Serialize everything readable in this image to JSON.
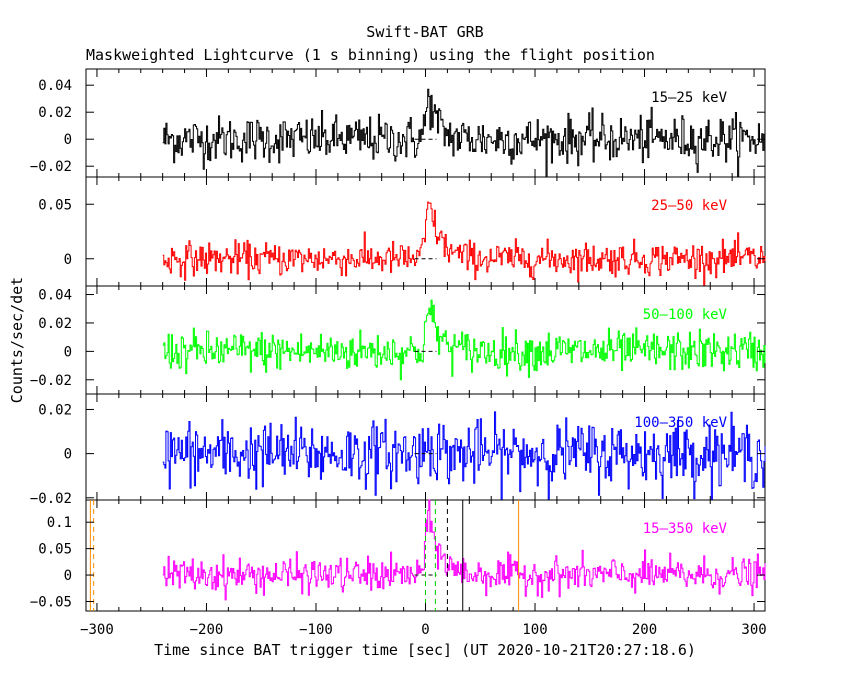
{
  "chart_data": {
    "type": "line",
    "title": "Swift-BAT GRB",
    "subtitle": "Maskweighted Lightcurve (1 s binning) using the flight position",
    "xlabel": "Time since BAT trigger time [sec] (UT 2020-10-21T20:27:18.6)",
    "ylabel": "Counts/sec/det",
    "xlim": [
      -310,
      310
    ],
    "x_tick_labels": [
      "−300",
      "−200",
      "−100",
      "0",
      "100",
      "200",
      "300"
    ],
    "x_ticks": [
      -300,
      -200,
      -100,
      0,
      100,
      200,
      300
    ],
    "data_start": -240,
    "data_end": 310,
    "panels": [
      {
        "band": "15–25 keV",
        "color": "#000000",
        "ylim": [
          -0.028,
          0.052
        ],
        "y_ticks": [
          -0.02,
          0,
          0.02,
          0.04
        ],
        "y_tick_labels": [
          "−0.02",
          "0",
          "0.02",
          "0.04"
        ],
        "noise_sigma": 0.0085,
        "peak_amplitude": 0.03,
        "peak_time": 3,
        "rise": 3,
        "decay": 8
      },
      {
        "band": "25–50 keV",
        "color": "#ff0000",
        "ylim": [
          -0.025,
          0.075
        ],
        "y_ticks": [
          0,
          0.05
        ],
        "y_tick_labels": [
          "0",
          "0.05"
        ],
        "noise_sigma": 0.0075,
        "peak_amplitude": 0.05,
        "peak_time": 3,
        "rise": 3,
        "decay": 10
      },
      {
        "band": "50–100 keV",
        "color": "#00ff00",
        "ylim": [
          -0.03,
          0.046
        ],
        "y_ticks": [
          -0.02,
          0,
          0.02,
          0.04
        ],
        "y_tick_labels": [
          "−0.02",
          "0",
          "0.02",
          "0.04"
        ],
        "noise_sigma": 0.007,
        "peak_amplitude": 0.03,
        "peak_time": 3,
        "rise": 3,
        "decay": 9
      },
      {
        "band": "100–350 keV",
        "color": "#0000ff",
        "ylim": [
          -0.021,
          0.027
        ],
        "y_ticks": [
          -0.02,
          0,
          0.02
        ],
        "y_tick_labels": [
          "−0.02",
          "0",
          "0.02"
        ],
        "noise_sigma": 0.0072,
        "peak_amplitude": 0.006,
        "peak_time": 3,
        "rise": 3,
        "decay": 6
      },
      {
        "band": "15–350 keV",
        "color": "#ff00ff",
        "ylim": [
          -0.068,
          0.142
        ],
        "y_ticks": [
          -0.05,
          0,
          0.05,
          0.1
        ],
        "y_tick_labels": [
          "−0.05",
          "0",
          "0.05",
          "0.1"
        ],
        "noise_sigma": 0.016,
        "peak_amplitude": 0.11,
        "peak_time": 3,
        "rise": 3,
        "decay": 10
      }
    ],
    "markers": [
      {
        "x": -306,
        "color": "#ff8c00",
        "style": "solid"
      },
      {
        "x": -303,
        "color": "#ff8c00",
        "style": "dashed"
      },
      {
        "x": 0,
        "color": "#00cc00",
        "style": "dashed"
      },
      {
        "x": 9,
        "color": "#00cc00",
        "style": "dashed"
      },
      {
        "x": 20,
        "color": "#000000",
        "style": "dashed"
      },
      {
        "x": 34,
        "color": "#000000",
        "style": "solid"
      },
      {
        "x": 85,
        "color": "#ff8c00",
        "style": "solid"
      }
    ],
    "grid": false,
    "legend": "none"
  }
}
